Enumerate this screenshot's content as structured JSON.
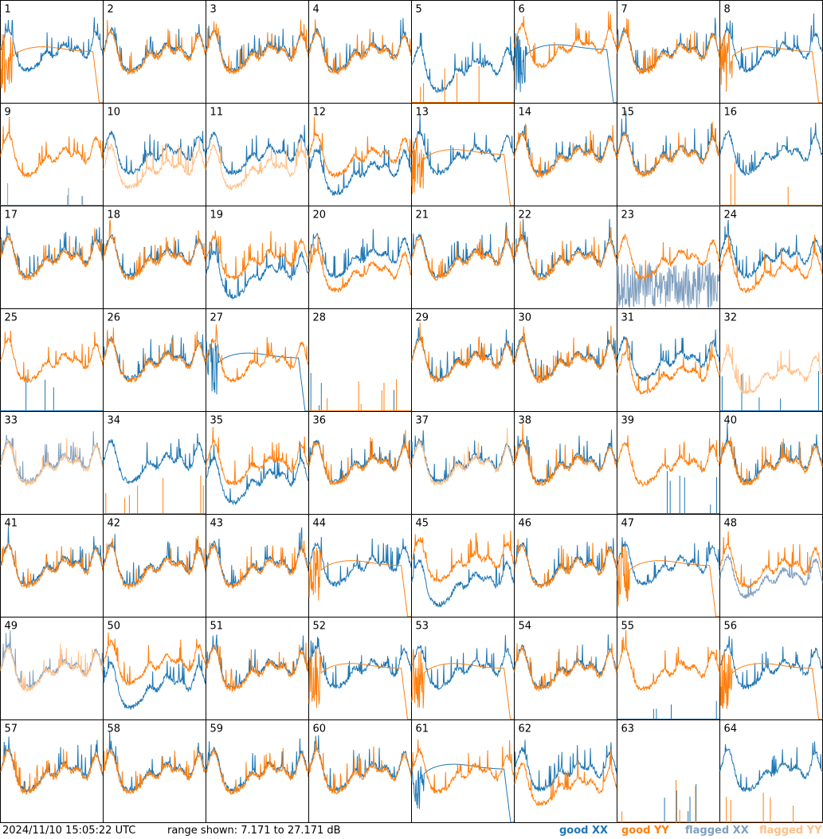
{
  "footer": {
    "timestamp": "2024/11/10 15:05:22 UTC",
    "range": "range shown: 7.171 to 27.171 dB"
  },
  "legend": {
    "good_xx": "good XX",
    "good_yy": "good YY",
    "flagged_xx": "flagged XX",
    "flagged_yy": "flagged YY"
  },
  "colors": {
    "good_xx": "#1f77b4",
    "good_yy": "#ff7f0e",
    "flagged_xx": "#7f9fbf",
    "flagged_yy": "#ffbf87"
  },
  "chart_data": {
    "type": "line",
    "grid": {
      "rows": 8,
      "cols": 8
    },
    "ylim_db": [
      7.171,
      27.171
    ],
    "x": "frequency channel (not labeled)",
    "panels": [
      {
        "n": "1",
        "xx": "good",
        "yy": "good",
        "xx_shape": "spectrum",
        "yy_shape": "dip"
      },
      {
        "n": "2",
        "xx": "good",
        "yy": "good",
        "xx_shape": "spectrum",
        "yy_shape": "spectrum"
      },
      {
        "n": "3",
        "xx": "good",
        "yy": "good",
        "xx_shape": "spectrum",
        "yy_shape": "spectrum"
      },
      {
        "n": "4",
        "xx": "good",
        "yy": "good",
        "xx_shape": "spectrum",
        "yy_shape": "spectrum"
      },
      {
        "n": "5",
        "xx": "good",
        "yy": "good",
        "xx_shape": "low",
        "yy_shape": "empty"
      },
      {
        "n": "6",
        "xx": "good",
        "yy": "good",
        "xx_shape": "dip",
        "yy_shape": "spectrum_high"
      },
      {
        "n": "7",
        "xx": "good",
        "yy": "good",
        "xx_shape": "spectrum",
        "yy_shape": "spectrum"
      },
      {
        "n": "8",
        "xx": "good",
        "yy": "good",
        "xx_shape": "spectrum",
        "yy_shape": "dip"
      },
      {
        "n": "9",
        "xx": "flagged",
        "yy": "good",
        "xx_shape": "empty",
        "yy_shape": "spectrum"
      },
      {
        "n": "10",
        "xx": "good",
        "yy": "flagged",
        "xx_shape": "spectrum",
        "yy_shape": "spectrum_low"
      },
      {
        "n": "11",
        "xx": "good",
        "yy": "flagged",
        "xx_shape": "spectrum",
        "yy_shape": "spectrum_low"
      },
      {
        "n": "12",
        "xx": "good",
        "yy": "good",
        "xx_shape": "low",
        "yy_shape": "spectrum"
      },
      {
        "n": "13",
        "xx": "good",
        "yy": "good",
        "xx_shape": "spectrum",
        "yy_shape": "dip"
      },
      {
        "n": "14",
        "xx": "good",
        "yy": "good",
        "xx_shape": "spectrum",
        "yy_shape": "spectrum"
      },
      {
        "n": "15",
        "xx": "good",
        "yy": "good",
        "xx_shape": "spectrum",
        "yy_shape": "spectrum"
      },
      {
        "n": "16",
        "xx": "good",
        "yy": "good",
        "xx_shape": "spectrum",
        "yy_shape": "empty"
      },
      {
        "n": "17",
        "xx": "good",
        "yy": "good",
        "xx_shape": "spectrum",
        "yy_shape": "spectrum"
      },
      {
        "n": "18",
        "xx": "good",
        "yy": "good",
        "xx_shape": "spectrum",
        "yy_shape": "spectrum"
      },
      {
        "n": "19",
        "xx": "good",
        "yy": "good",
        "xx_shape": "low",
        "yy_shape": "spectrum"
      },
      {
        "n": "20",
        "xx": "good",
        "yy": "good",
        "xx_shape": "spectrum",
        "yy_shape": "spectrum_low"
      },
      {
        "n": "21",
        "xx": "good",
        "yy": "good",
        "xx_shape": "spectrum",
        "yy_shape": "spectrum"
      },
      {
        "n": "22",
        "xx": "good",
        "yy": "good",
        "xx_shape": "spectrum",
        "yy_shape": "spectrum"
      },
      {
        "n": "23",
        "xx": "flagged",
        "yy": "good",
        "xx_shape": "noise",
        "yy_shape": "spectrum"
      },
      {
        "n": "24",
        "xx": "good",
        "yy": "good",
        "xx_shape": "spectrum",
        "yy_shape": "spectrum_low"
      },
      {
        "n": "25",
        "xx": "good",
        "yy": "good",
        "xx_shape": "empty",
        "yy_shape": "spectrum"
      },
      {
        "n": "26",
        "xx": "good",
        "yy": "good",
        "xx_shape": "spectrum",
        "yy_shape": "spectrum"
      },
      {
        "n": "27",
        "xx": "good",
        "yy": "good",
        "xx_shape": "dip",
        "yy_shape": "spectrum"
      },
      {
        "n": "28",
        "xx": "good",
        "yy": "good",
        "xx_shape": "empty",
        "yy_shape": "empty"
      },
      {
        "n": "29",
        "xx": "good",
        "yy": "good",
        "xx_shape": "spectrum",
        "yy_shape": "spectrum"
      },
      {
        "n": "30",
        "xx": "good",
        "yy": "good",
        "xx_shape": "spectrum",
        "yy_shape": "spectrum"
      },
      {
        "n": "31",
        "xx": "good",
        "yy": "good",
        "xx_shape": "spectrum",
        "yy_shape": "spectrum_low"
      },
      {
        "n": "32",
        "xx": "good",
        "yy": "flagged",
        "xx_shape": "empty",
        "yy_shape": "spectrum_low"
      },
      {
        "n": "33",
        "xx": "flagged",
        "yy": "flagged",
        "xx_shape": "spectrum",
        "yy_shape": "spectrum"
      },
      {
        "n": "34",
        "xx": "good",
        "yy": "good",
        "xx_shape": "spectrum",
        "yy_shape": "empty"
      },
      {
        "n": "35",
        "xx": "good",
        "yy": "good",
        "xx_shape": "low",
        "yy_shape": "spectrum"
      },
      {
        "n": "36",
        "xx": "good",
        "yy": "good",
        "xx_shape": "spectrum",
        "yy_shape": "spectrum"
      },
      {
        "n": "37",
        "xx": "good",
        "yy": "flagged",
        "xx_shape": "spectrum",
        "yy_shape": "spectrum"
      },
      {
        "n": "38",
        "xx": "good",
        "yy": "good",
        "xx_shape": "spectrum",
        "yy_shape": "spectrum"
      },
      {
        "n": "39",
        "xx": "good",
        "yy": "good",
        "xx_shape": "empty",
        "yy_shape": "spectrum"
      },
      {
        "n": "40",
        "xx": "good",
        "yy": "good",
        "xx_shape": "spectrum",
        "yy_shape": "spectrum"
      },
      {
        "n": "41",
        "xx": "good",
        "yy": "good",
        "xx_shape": "spectrum",
        "yy_shape": "spectrum"
      },
      {
        "n": "42",
        "xx": "good",
        "yy": "good",
        "xx_shape": "spectrum",
        "yy_shape": "spectrum"
      },
      {
        "n": "43",
        "xx": "good",
        "yy": "good",
        "xx_shape": "spectrum",
        "yy_shape": "spectrum"
      },
      {
        "n": "44",
        "xx": "good",
        "yy": "good",
        "xx_shape": "spectrum",
        "yy_shape": "dip"
      },
      {
        "n": "45",
        "xx": "good",
        "yy": "good",
        "xx_shape": "low",
        "yy_shape": "spectrum_high"
      },
      {
        "n": "46",
        "xx": "good",
        "yy": "good",
        "xx_shape": "spectrum",
        "yy_shape": "spectrum"
      },
      {
        "n": "47",
        "xx": "good",
        "yy": "good",
        "xx_shape": "spectrum",
        "yy_shape": "dip"
      },
      {
        "n": "48",
        "xx": "flagged",
        "yy": "good",
        "xx_shape": "spectrum_low",
        "yy_shape": "spectrum"
      },
      {
        "n": "49",
        "xx": "flagged",
        "yy": "flagged",
        "xx_shape": "spectrum",
        "yy_shape": "spectrum"
      },
      {
        "n": "50",
        "xx": "good",
        "yy": "good",
        "xx_shape": "low",
        "yy_shape": "spectrum_high"
      },
      {
        "n": "51",
        "xx": "good",
        "yy": "good",
        "xx_shape": "spectrum",
        "yy_shape": "spectrum"
      },
      {
        "n": "52",
        "xx": "good",
        "yy": "good",
        "xx_shape": "spectrum",
        "yy_shape": "dip"
      },
      {
        "n": "53",
        "xx": "good",
        "yy": "good",
        "xx_shape": "spectrum",
        "yy_shape": "dip"
      },
      {
        "n": "54",
        "xx": "good",
        "yy": "good",
        "xx_shape": "spectrum",
        "yy_shape": "spectrum"
      },
      {
        "n": "55",
        "xx": "good",
        "yy": "good",
        "xx_shape": "empty",
        "yy_shape": "spectrum"
      },
      {
        "n": "56",
        "xx": "good",
        "yy": "good",
        "xx_shape": "spectrum",
        "yy_shape": "dip"
      },
      {
        "n": "57",
        "xx": "good",
        "yy": "good",
        "xx_shape": "spectrum",
        "yy_shape": "spectrum"
      },
      {
        "n": "58",
        "xx": "good",
        "yy": "good",
        "xx_shape": "spectrum",
        "yy_shape": "spectrum"
      },
      {
        "n": "59",
        "xx": "good",
        "yy": "good",
        "xx_shape": "spectrum",
        "yy_shape": "spectrum"
      },
      {
        "n": "60",
        "xx": "good",
        "yy": "good",
        "xx_shape": "spectrum",
        "yy_shape": "spectrum"
      },
      {
        "n": "61",
        "xx": "good",
        "yy": "good",
        "xx_shape": "dip",
        "yy_shape": "spectrum"
      },
      {
        "n": "62",
        "xx": "good",
        "yy": "good",
        "xx_shape": "spectrum",
        "yy_shape": "spectrum_low"
      },
      {
        "n": "63",
        "xx": "good",
        "yy": "good",
        "xx_shape": "empty",
        "yy_shape": "empty"
      },
      {
        "n": "64",
        "xx": "good",
        "yy": "good",
        "xx_shape": "spectrum",
        "yy_shape": "empty"
      }
    ]
  }
}
